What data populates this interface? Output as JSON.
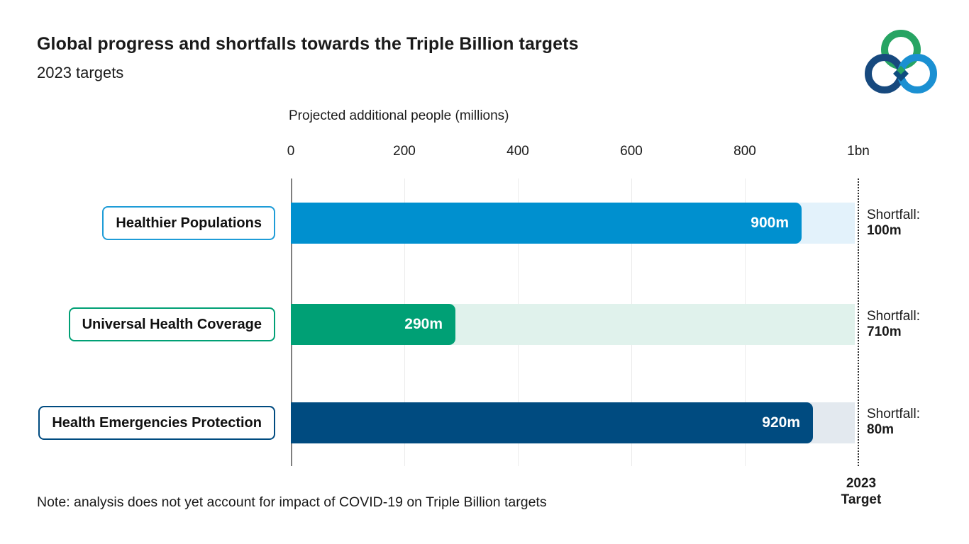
{
  "header": {
    "title": "Global progress and shortfalls towards the Triple Billion targets",
    "subtitle": "2023 targets"
  },
  "logo": {
    "name": "triple-billion-logo",
    "colors": {
      "green": "#27a463",
      "navy": "#17497e",
      "blue": "#1b90d2"
    }
  },
  "chart_data": {
    "type": "bar",
    "orientation": "horizontal",
    "axis_title": "Projected additional people (millions)",
    "x_ticks": [
      "0",
      "200",
      "400",
      "600",
      "800",
      "1bn"
    ],
    "xlim": [
      0,
      1000
    ],
    "grid": "vertical-light",
    "categories": [
      "Healthier Populations",
      "Universal Health Coverage",
      "Health Emergencies Protection"
    ],
    "values": [
      900,
      290,
      920
    ],
    "rows": [
      {
        "label": "Healthier Populations",
        "value": 900,
        "value_label": "900m",
        "shortfall_title": "Shortfall:",
        "shortfall_value": "100m",
        "bar_color": "#0090cf",
        "track_color": "#e3f2fb"
      },
      {
        "label": "Universal Health Coverage",
        "value": 290,
        "value_label": "290m",
        "shortfall_title": "Shortfall:",
        "shortfall_value": "710m",
        "bar_color": "#00a075",
        "track_color": "#e0f2ec"
      },
      {
        "label": "Health Emergencies Protection",
        "value": 920,
        "value_label": "920m",
        "shortfall_title": "Shortfall:",
        "shortfall_value": "80m",
        "bar_color": "#004b80",
        "track_color": "#e3e9ef"
      }
    ],
    "target_line": {
      "value": 1000,
      "style": "dotted",
      "label_line1": "2023",
      "label_line2": "Target"
    }
  },
  "note": "Note: analysis does not yet account for impact of COVID-19 on Triple Billion targets"
}
